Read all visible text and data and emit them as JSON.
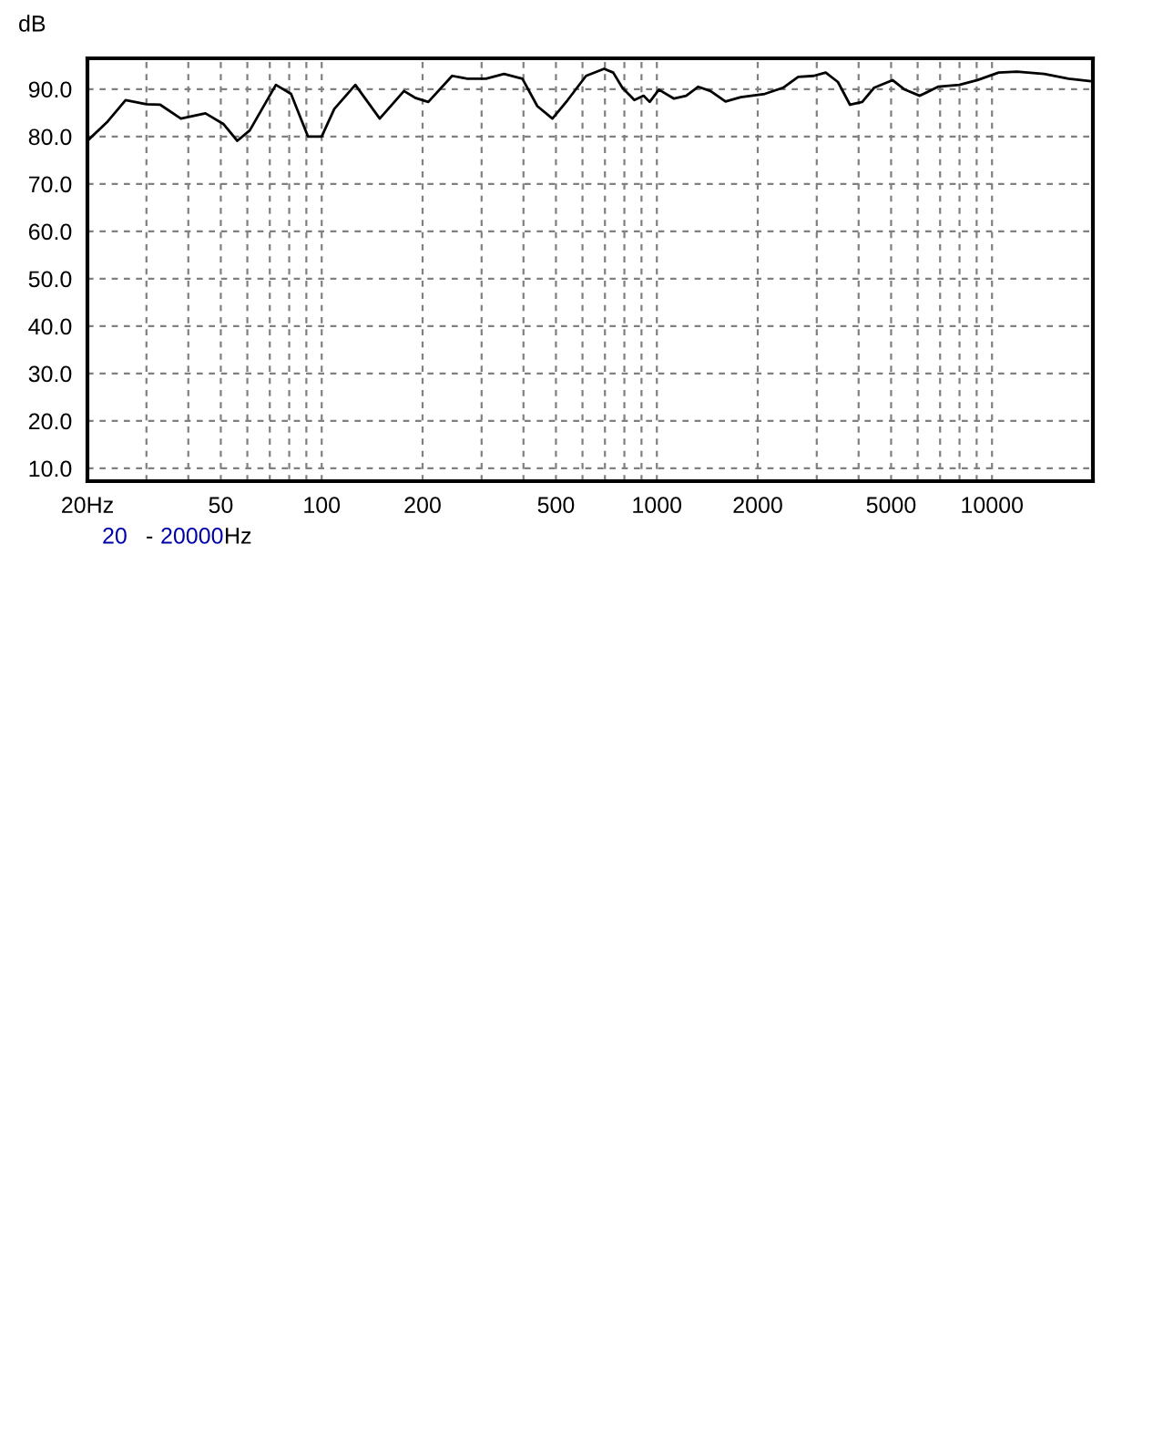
{
  "chart_data": {
    "type": "line",
    "ylabel": "dB",
    "annotations": [
      "20",
      "-",
      "20000",
      "Hz"
    ],
    "xlim": [
      20,
      20000
    ],
    "ylim": [
      7.3,
      96.5
    ],
    "log": "x",
    "grid": true,
    "marker": "none",
    "line_style": "solid",
    "xticks": [
      {
        "value": 20,
        "label": "20Hz"
      },
      {
        "value": 30,
        "label": null
      },
      {
        "value": 40,
        "label": null
      },
      50,
      {
        "value": 60,
        "label": null
      },
      {
        "value": 70,
        "label": null
      },
      {
        "value": 80,
        "label": null
      },
      {
        "value": 90,
        "label": null
      },
      100,
      200,
      {
        "value": 300,
        "label": null
      },
      {
        "value": 400,
        "label": null
      },
      500,
      {
        "value": 600,
        "label": null
      },
      {
        "value": 700,
        "label": null
      },
      {
        "value": 800,
        "label": null
      },
      {
        "value": 900,
        "label": null
      },
      1000,
      2000,
      {
        "value": 3000,
        "label": null
      },
      {
        "value": 4000,
        "label": null
      },
      5000,
      {
        "value": 6000,
        "label": null
      },
      {
        "value": 7000,
        "label": null
      },
      {
        "value": 8000,
        "label": null
      },
      {
        "value": 9000,
        "label": null
      },
      10000
    ],
    "yticks": [
      {
        "value": 10,
        "label": "10.0"
      },
      {
        "value": 20,
        "label": "20.0"
      },
      {
        "value": 30,
        "label": "30.0"
      },
      {
        "value": 40,
        "label": "40.0"
      },
      {
        "value": 50,
        "label": "50.0"
      },
      {
        "value": 60,
        "label": "60.0"
      },
      {
        "value": 70,
        "label": "70.0"
      },
      {
        "value": 80,
        "label": "80.0"
      },
      {
        "value": 90,
        "label": "90.0"
      }
    ],
    "series": [
      {
        "color": "#000000",
        "x": [
          20,
          23,
          26,
          30,
          33,
          38,
          45,
          51,
          56,
          61,
          73,
          81,
          91,
          100,
          109,
          126,
          149,
          176,
          191,
          208,
          245,
          272,
          309,
          350,
          397,
          440,
          488,
          542,
          615,
          696,
          741,
          789,
          857,
          913,
          952,
          1014,
          1125,
          1223,
          1329,
          1445,
          1603,
          1780,
          2100,
          2380,
          2640,
          2940,
          3190,
          3470,
          3770,
          4100,
          4450,
          5050,
          5490,
          6090,
          6900,
          7990,
          9050,
          10470,
          11870,
          14320,
          16930,
          19580
        ],
        "values": [
          79.1,
          83.2,
          87.7,
          86.8,
          86.7,
          83.8,
          84.9,
          82.6,
          79.1,
          81.3,
          90.9,
          89.0,
          80.0,
          80.0,
          85.8,
          90.9,
          83.8,
          89.6,
          88.1,
          87.3,
          92.8,
          92.2,
          92.2,
          93.2,
          92.2,
          86.4,
          83.8,
          87.7,
          92.8,
          94.3,
          93.5,
          90.3,
          87.7,
          88.6,
          87.3,
          89.9,
          88.0,
          88.6,
          90.5,
          89.6,
          87.4,
          88.3,
          89.0,
          90.3,
          92.6,
          92.8,
          93.5,
          91.5,
          86.7,
          87.3,
          90.3,
          91.9,
          89.9,
          88.6,
          90.5,
          90.9,
          91.9,
          93.5,
          93.7,
          93.2,
          92.2,
          91.7
        ]
      }
    ]
  }
}
